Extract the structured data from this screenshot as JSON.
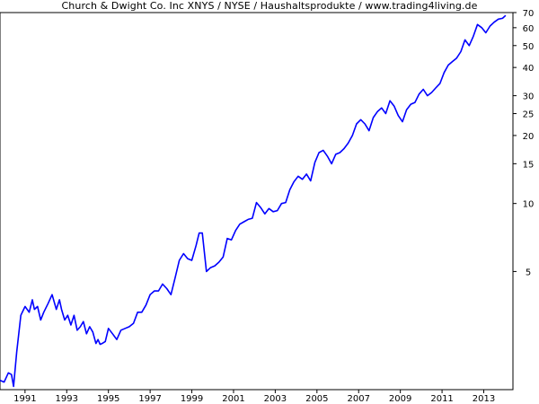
{
  "chart_data": {
    "type": "line",
    "title": "Church & Dwight Co. Inc XNYS / NYSE / Haushaltsprodukte / www.trading4living.de",
    "xlabel": "",
    "ylabel": "",
    "y_scale": "log",
    "ylim": [
      1.5,
      70
    ],
    "xlim": [
      1989.8,
      2014.4
    ],
    "grid": false,
    "line_color": "#0000ff",
    "x_ticks": [
      1991,
      1993,
      1995,
      1997,
      1999,
      2001,
      2003,
      2005,
      2007,
      2009,
      2011,
      2013
    ],
    "x_tick_labels": [
      "1991",
      "1993",
      "1995",
      "1997",
      "1999",
      "2001",
      "2003",
      "2005",
      "2007",
      "2009",
      "2011",
      "2013"
    ],
    "y_ticks": [
      5,
      10,
      15,
      20,
      25,
      30,
      40,
      50,
      60,
      70
    ],
    "y_tick_labels": [
      "5",
      "10",
      "15",
      "20",
      "25",
      "30",
      "40",
      "50",
      "60",
      "70"
    ],
    "series": [
      {
        "x": [
          1989.8,
          1990.0,
          1990.2,
          1990.35,
          1990.45,
          1990.6,
          1990.8,
          1991.0,
          1991.2,
          1991.35,
          1991.45,
          1991.6,
          1991.75,
          1991.9,
          1992.1,
          1992.3,
          1992.5,
          1992.65,
          1992.75,
          1992.9,
          1993.05,
          1993.2,
          1993.35,
          1993.5,
          1993.65,
          1993.8,
          1993.95,
          1994.1,
          1994.25,
          1994.4,
          1994.5,
          1994.6,
          1994.7,
          1994.85,
          1995.0,
          1995.2,
          1995.4,
          1995.6,
          1995.8,
          1996.0,
          1996.2,
          1996.4,
          1996.6,
          1996.8,
          1997.0,
          1997.2,
          1997.4,
          1997.6,
          1997.8,
          1998.0,
          1998.2,
          1998.4,
          1998.6,
          1998.8,
          1999.0,
          1999.2,
          1999.35,
          1999.5,
          1999.7,
          1999.9,
          2000.1,
          2000.3,
          2000.5,
          2000.7,
          2000.9,
          2001.1,
          2001.3,
          2001.5,
          2001.7,
          2001.9,
          2002.1,
          2002.3,
          2002.5,
          2002.7,
          2002.9,
          2003.1,
          2003.3,
          2003.5,
          2003.7,
          2003.9,
          2004.1,
          2004.3,
          2004.5,
          2004.7,
          2004.9,
          2005.1,
          2005.3,
          2005.5,
          2005.7,
          2005.9,
          2006.1,
          2006.3,
          2006.5,
          2006.7,
          2006.9,
          2007.1,
          2007.3,
          2007.5,
          2007.7,
          2007.9,
          2008.1,
          2008.3,
          2008.5,
          2008.7,
          2008.9,
          2009.1,
          2009.3,
          2009.5,
          2009.7,
          2009.9,
          2010.1,
          2010.3,
          2010.5,
          2010.7,
          2010.9,
          2011.1,
          2011.3,
          2011.5,
          2011.7,
          2011.9,
          2012.1,
          2012.3,
          2012.5,
          2012.7,
          2012.9,
          2013.1,
          2013.3,
          2013.5,
          2013.7,
          2013.9,
          2014.05
        ],
        "values": [
          1.65,
          1.62,
          1.78,
          1.75,
          1.55,
          2.2,
          3.2,
          3.5,
          3.3,
          3.75,
          3.4,
          3.5,
          3.05,
          3.3,
          3.6,
          3.95,
          3.4,
          3.75,
          3.4,
          3.05,
          3.2,
          2.9,
          3.2,
          2.75,
          2.85,
          3.0,
          2.65,
          2.85,
          2.7,
          2.4,
          2.5,
          2.38,
          2.4,
          2.45,
          2.8,
          2.65,
          2.5,
          2.75,
          2.8,
          2.85,
          2.95,
          3.3,
          3.3,
          3.55,
          3.95,
          4.1,
          4.1,
          4.4,
          4.2,
          3.95,
          4.7,
          5.6,
          6.0,
          5.7,
          5.6,
          6.5,
          7.4,
          7.4,
          5.0,
          5.2,
          5.3,
          5.5,
          5.8,
          7.0,
          6.9,
          7.6,
          8.1,
          8.3,
          8.5,
          8.6,
          10.1,
          9.6,
          9.0,
          9.5,
          9.2,
          9.3,
          10.0,
          10.1,
          11.5,
          12.5,
          13.2,
          12.8,
          13.5,
          12.6,
          15.2,
          16.8,
          17.2,
          16.2,
          15.0,
          16.5,
          16.8,
          17.5,
          18.5,
          20.0,
          22.5,
          23.5,
          22.5,
          21.0,
          24.0,
          25.5,
          26.5,
          25.0,
          28.5,
          27.0,
          24.5,
          23.0,
          26.0,
          27.5,
          28.0,
          30.5,
          32.0,
          30.0,
          31.0,
          32.5,
          34.0,
          38.0,
          41.0,
          42.5,
          44.0,
          47.0,
          53.0,
          50.0,
          55.0,
          62.0,
          60.0,
          57.0,
          61.0,
          63.5,
          65.5,
          66.0,
          68.0
        ]
      }
    ]
  }
}
